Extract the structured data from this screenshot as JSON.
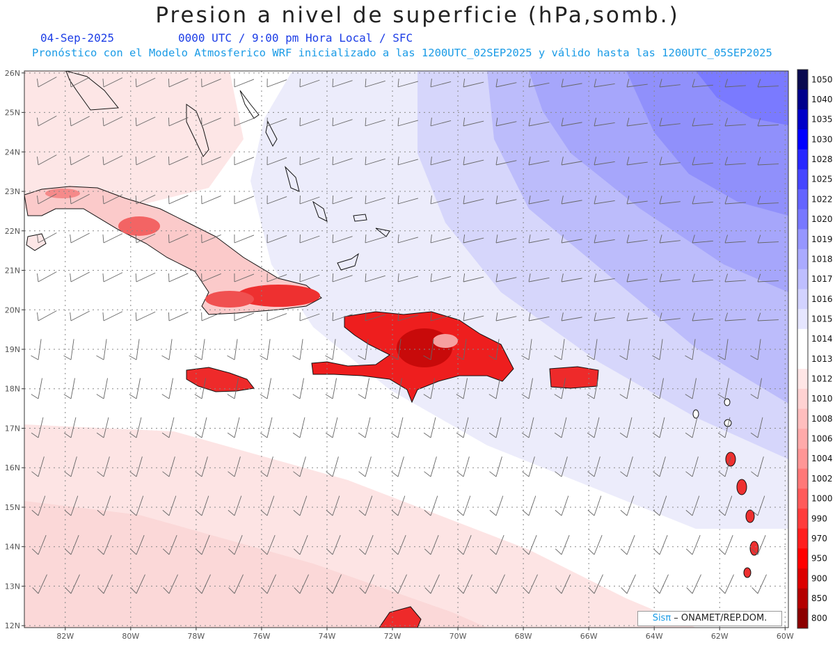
{
  "title": "Presion a nivel de superficie (hPa,somb.)",
  "date": "04-Sep-2025",
  "valid_time": "0000 UTC / 9:00 pm Hora Local / SFC",
  "forecast_info": "Pronóstico con el Modelo Atmosferico WRF inicializado a las 1200UTC_02SEP2025 y válido hasta las  1200UTC_05SEP2025",
  "credit": {
    "sis": "Sisπ",
    "org": " – ONAMET/REP.DOM."
  },
  "lat_labels": [
    "26N",
    "25N",
    "24N",
    "23N",
    "22N",
    "21N",
    "20N",
    "19N",
    "18N",
    "17N",
    "16N",
    "15N",
    "14N",
    "13N",
    "12N"
  ],
  "lon_labels": [
    "82W",
    "80W",
    "78W",
    "76W",
    "74W",
    "72W",
    "70W",
    "68W",
    "66W",
    "64W",
    "62W",
    "60W"
  ],
  "colorbar": {
    "levels": [
      "1050",
      "1040",
      "1035",
      "1030",
      "1028",
      "1025",
      "1022",
      "1020",
      "1019",
      "1018",
      "1017",
      "1016",
      "1015",
      "1014",
      "1013",
      "1012",
      "1010",
      "1008",
      "1006",
      "1004",
      "1002",
      "1000",
      "990",
      "970",
      "950",
      "900",
      "850",
      "800"
    ],
    "colors": [
      "#0a0a50",
      "#00008c",
      "#0000c8",
      "#0000ff",
      "#2828ff",
      "#4646ff",
      "#6464ff",
      "#7878ff",
      "#9696ff",
      "#aaaaff",
      "#bebeff",
      "#d2d2ff",
      "#e6e6ff",
      "#ffffff",
      "#ffffff",
      "#ffe6e6",
      "#ffd2d2",
      "#ffbebe",
      "#ffaaaa",
      "#ff9696",
      "#ff7878",
      "#ff5a5a",
      "#ff3c3c",
      "#ff1e1e",
      "#ff0000",
      "#dc0000",
      "#b40000",
      "#8c0000"
    ]
  }
}
